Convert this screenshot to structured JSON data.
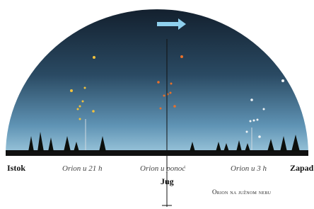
{
  "labels": {
    "east": "Istok",
    "west": "Zapad",
    "south": "Jug",
    "orion_21": "Orion u 21 h",
    "orion_midnight": "Orion u ponoć",
    "orion_3": "Orion u 3 h"
  },
  "caption": "Orion na južnom nebu"
}
